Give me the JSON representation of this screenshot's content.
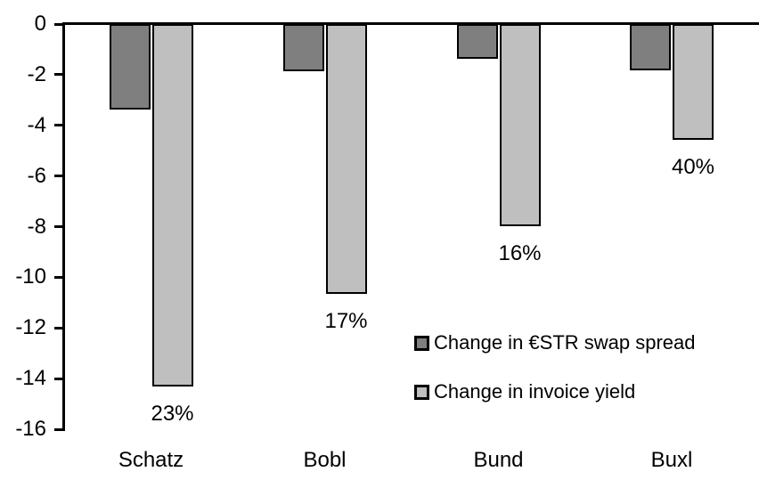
{
  "chart_data": {
    "type": "bar",
    "orientation": "vertical",
    "title": "",
    "xlabel": "",
    "ylabel": "",
    "categories": [
      "Schatz",
      "Bobl",
      "Bund",
      "Buxl"
    ],
    "series": [
      {
        "name": "Change in €STR swap spread",
        "color": "#7F7F7F",
        "border_color": "#000000",
        "values": [
          -3.3,
          -1.8,
          -1.3,
          -1.75
        ]
      },
      {
        "name": "Change in invoice yield",
        "color": "#BFBFBF",
        "border_color": "#000000",
        "values": [
          -14.25,
          -10.6,
          -7.9,
          -4.5
        ],
        "labels": [
          "23%",
          "17%",
          "16%",
          "40%"
        ]
      }
    ],
    "ylim": [
      -16,
      0
    ],
    "yticks": [
      0,
      -2,
      -4,
      -6,
      -8,
      -10,
      -12,
      -14,
      -16
    ],
    "grid": false,
    "legend_position": "inside-right",
    "background_color": "#FFFFFF",
    "axis_color": "#000000"
  }
}
